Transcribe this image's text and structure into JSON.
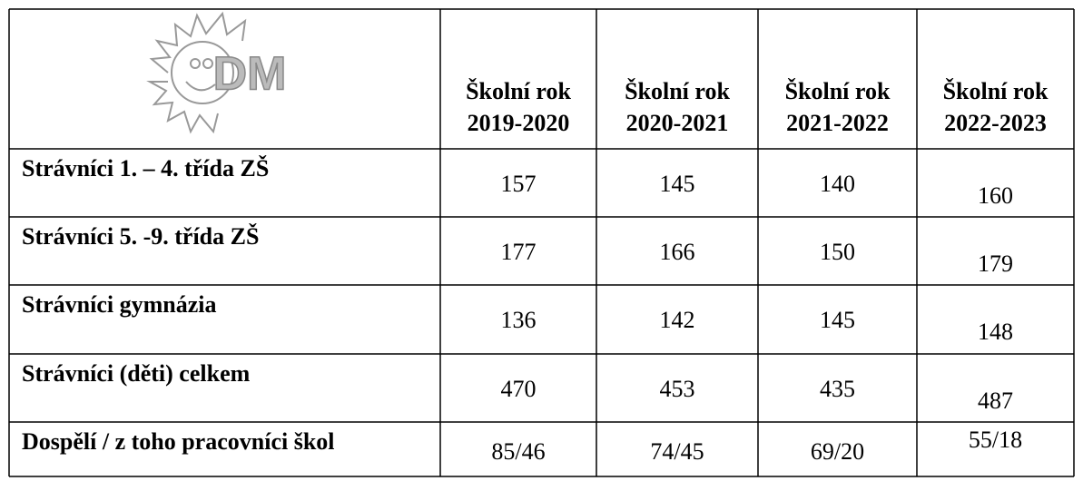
{
  "table": {
    "logo": "DM",
    "columns": [
      {
        "label": "Školní rok",
        "year": "2019-2020"
      },
      {
        "label": "Školní rok",
        "year": "2020-2021"
      },
      {
        "label": "Školní rok",
        "year": "2021-2022"
      },
      {
        "label": "Školní rok",
        "year": "2022-2023"
      }
    ],
    "rows": [
      {
        "label": "Strávníci 1. – 4. třída ZŠ",
        "values": [
          157,
          145,
          140,
          160
        ]
      },
      {
        "label": "Strávníci 5. -9. třída ZŠ",
        "values": [
          177,
          166,
          150,
          179
        ]
      },
      {
        "label": "Strávníci gymnázia",
        "values": [
          136,
          142,
          145,
          148
        ]
      },
      {
        "label": "Strávníci (děti) celkem",
        "values": [
          470,
          453,
          435,
          487
        ]
      },
      {
        "label": "Dospělí / z toho pracovníci škol",
        "values": [
          "85/46",
          "74/45",
          "69/20",
          "55/18"
        ]
      }
    ]
  }
}
